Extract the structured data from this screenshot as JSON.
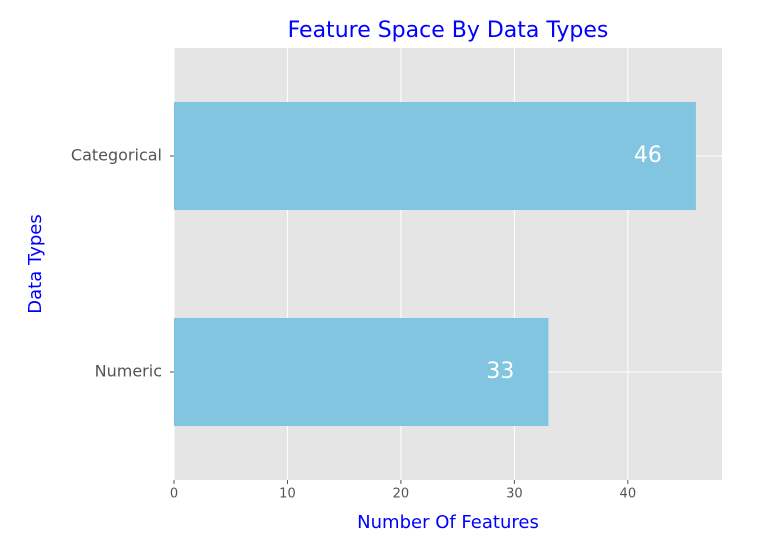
{
  "chart_data": {
    "type": "barh",
    "title": "Feature Space By Data Types",
    "x_label": "Number Of Features",
    "y_label": "Data Types",
    "categories": [
      "Categorical",
      "Numeric"
    ],
    "values": [
      46,
      33
    ],
    "color": "#82c5e0",
    "xlim": [
      0,
      48.3
    ],
    "xticks": [
      0,
      10,
      20,
      30,
      40
    ],
    "grid": true
  }
}
